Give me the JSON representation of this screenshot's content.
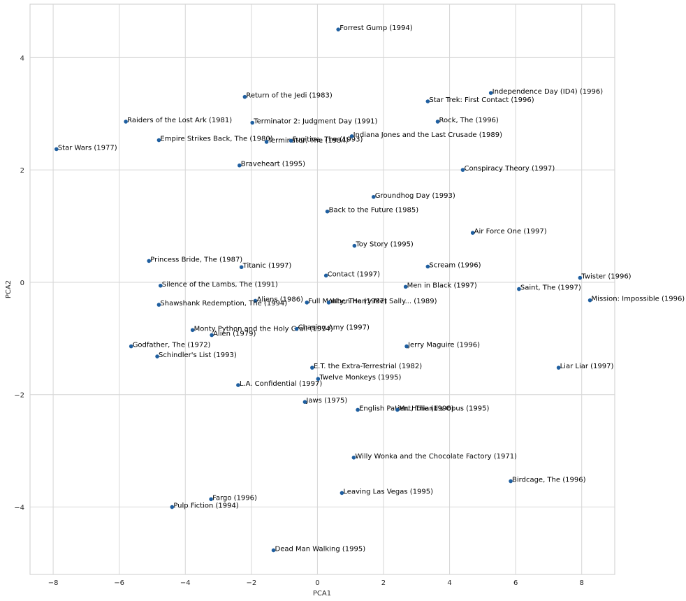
{
  "chart_data": {
    "type": "scatter",
    "xlabel": "PCA1",
    "ylabel": "PCA2",
    "xlim": [
      -8.7,
      9.0
    ],
    "ylim": [
      -5.2,
      4.95
    ],
    "xticks": [
      {
        "value": -8,
        "label": "−8"
      },
      {
        "value": -6,
        "label": "−6"
      },
      {
        "value": -4,
        "label": "−4"
      },
      {
        "value": -2,
        "label": "−2"
      },
      {
        "value": 0,
        "label": "0"
      },
      {
        "value": 2,
        "label": "2"
      },
      {
        "value": 4,
        "label": "4"
      },
      {
        "value": 6,
        "label": "6"
      },
      {
        "value": 8,
        "label": "8"
      }
    ],
    "yticks": [
      {
        "value": 4,
        "label": "4"
      },
      {
        "value": 2,
        "label": "2"
      },
      {
        "value": 0,
        "label": "0"
      },
      {
        "value": -2,
        "label": "−2"
      },
      {
        "value": -4,
        "label": "−4"
      }
    ],
    "grid": true,
    "point_color": "#1f5fa0",
    "points": [
      {
        "label": "Forrest Gump (1994)",
        "x": 0.63,
        "y": 4.5
      },
      {
        "label": "Independence Day (ID4) (1996)",
        "x": 5.25,
        "y": 3.37
      },
      {
        "label": "Star Trek: First Contact (1996)",
        "x": 3.34,
        "y": 3.22
      },
      {
        "label": "Return of the Jedi (1983)",
        "x": -2.2,
        "y": 3.3
      },
      {
        "label": "Raiders of the Lost Ark (1981)",
        "x": -5.8,
        "y": 2.86
      },
      {
        "label": "Terminator 2: Judgment Day (1991)",
        "x": -1.97,
        "y": 2.84
      },
      {
        "label": "Rock, The (1996)",
        "x": 3.64,
        "y": 2.86
      },
      {
        "label": "Empire Strikes Back, The (1980)",
        "x": -4.8,
        "y": 2.53
      },
      {
        "label": "Terminator, The (1984)",
        "x": -1.54,
        "y": 2.5
      },
      {
        "label": "Fugitive, The (1993)",
        "x": -0.8,
        "y": 2.52
      },
      {
        "label": "Indiana Jones and the Last Crusade (1989)",
        "x": 1.04,
        "y": 2.6
      },
      {
        "label": "Star Wars (1977)",
        "x": -7.9,
        "y": 2.37
      },
      {
        "label": "Braveheart (1995)",
        "x": -2.36,
        "y": 2.08
      },
      {
        "label": "Conspiracy Theory (1997)",
        "x": 4.4,
        "y": 2.0
      },
      {
        "label": "Groundhog Day (1993)",
        "x": 1.7,
        "y": 1.52
      },
      {
        "label": "Back to the Future (1985)",
        "x": 0.3,
        "y": 1.26
      },
      {
        "label": "Air Force One (1997)",
        "x": 4.7,
        "y": 0.88
      },
      {
        "label": "Toy Story (1995)",
        "x": 1.12,
        "y": 0.65
      },
      {
        "label": "Princess Bride, The (1987)",
        "x": -5.1,
        "y": 0.38
      },
      {
        "label": "Titanic (1997)",
        "x": -2.3,
        "y": 0.27
      },
      {
        "label": "Scream (1996)",
        "x": 3.34,
        "y": 0.28
      },
      {
        "label": "Contact (1997)",
        "x": 0.26,
        "y": 0.12
      },
      {
        "label": "Twister (1996)",
        "x": 7.95,
        "y": 0.08
      },
      {
        "label": "Silence of the Lambs, The (1991)",
        "x": -4.75,
        "y": -0.06
      },
      {
        "label": "Men in Black (1997)",
        "x": 2.67,
        "y": -0.08
      },
      {
        "label": "Saint, The (1997)",
        "x": 6.1,
        "y": -0.12
      },
      {
        "label": "Mission: Impossible (1996)",
        "x": 8.25,
        "y": -0.32
      },
      {
        "label": "Aliens (1986)",
        "x": -1.88,
        "y": -0.33
      },
      {
        "label": "Full Monty, The (1997)",
        "x": -0.32,
        "y": -0.36
      },
      {
        "label": "When Harry Met Sally... (1989)",
        "x": 0.34,
        "y": -0.36
      },
      {
        "label": "Shawshank Redemption, The (1994)",
        "x": -4.8,
        "y": -0.4
      },
      {
        "label": "Monty Python and the Holy Grail (1974)",
        "x": -3.78,
        "y": -0.85
      },
      {
        "label": "Chasing Amy (1997)",
        "x": -0.63,
        "y": -0.83
      },
      {
        "label": "Alien (1979)",
        "x": -3.2,
        "y": -0.94
      },
      {
        "label": "Godfather, The (1972)",
        "x": -5.64,
        "y": -1.14
      },
      {
        "label": "Jerry Maguire (1996)",
        "x": 2.7,
        "y": -1.14
      },
      {
        "label": "Schindler's List (1993)",
        "x": -4.85,
        "y": -1.32
      },
      {
        "label": "E.T. the Extra-Terrestrial (1982)",
        "x": -0.16,
        "y": -1.52
      },
      {
        "label": "Liar Liar (1997)",
        "x": 7.3,
        "y": -1.52
      },
      {
        "label": "Twelve Monkeys (1995)",
        "x": 0.02,
        "y": -1.72
      },
      {
        "label": "L.A. Confidential (1997)",
        "x": -2.4,
        "y": -1.83
      },
      {
        "label": "Jaws (1975)",
        "x": -0.38,
        "y": -2.13
      },
      {
        "label": "English Patient, The (1996)",
        "x": 1.22,
        "y": -2.27
      },
      {
        "label": "Mr. Holland's Opus (1995)",
        "x": 2.42,
        "y": -2.27
      },
      {
        "label": "Willy Wonka and the Chocolate Factory (1971)",
        "x": 1.1,
        "y": -3.12
      },
      {
        "label": "Birdcage, The (1996)",
        "x": 5.85,
        "y": -3.54
      },
      {
        "label": "Leaving Las Vegas (1995)",
        "x": 0.74,
        "y": -3.75
      },
      {
        "label": "Fargo (1996)",
        "x": -3.22,
        "y": -3.86
      },
      {
        "label": "Pulp Fiction (1994)",
        "x": -4.4,
        "y": -4.0
      },
      {
        "label": "Dead Man Walking (1995)",
        "x": -1.33,
        "y": -4.77
      }
    ]
  }
}
